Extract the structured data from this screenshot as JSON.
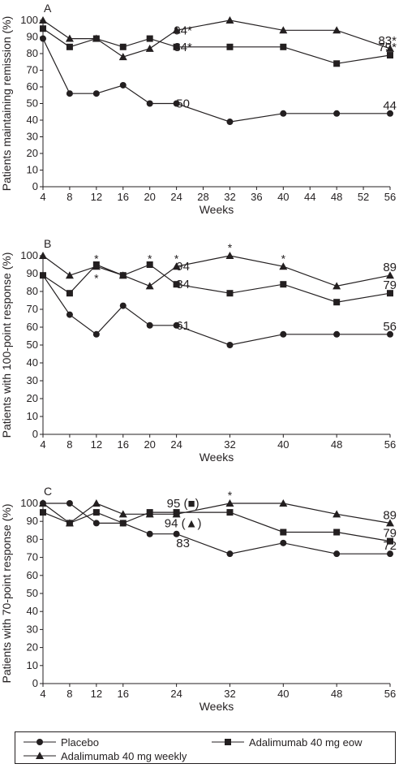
{
  "chart_data": [
    {
      "type": "line",
      "panel_label": "A",
      "xlabel": "Weeks",
      "ylabel": "Patients maintaining remission (%)",
      "x_ticks": [
        4,
        8,
        12,
        16,
        20,
        24,
        28,
        32,
        36,
        40,
        44,
        48,
        52,
        56
      ],
      "y_ticks": [
        0,
        10,
        20,
        30,
        40,
        50,
        60,
        70,
        80,
        90,
        100
      ],
      "xlim": [
        4,
        56
      ],
      "ylim": [
        0,
        100
      ],
      "series": [
        {
          "key": "placebo",
          "marker": "circle",
          "points": [
            [
              4,
              89
            ],
            [
              8,
              56
            ],
            [
              12,
              56
            ],
            [
              16,
              61
            ],
            [
              20,
              50
            ],
            [
              24,
              50
            ],
            [
              32,
              39
            ],
            [
              40,
              44
            ],
            [
              48,
              44
            ],
            [
              56,
              44
            ]
          ]
        },
        {
          "key": "eow",
          "marker": "square",
          "points": [
            [
              4,
              95
            ],
            [
              8,
              84
            ],
            [
              12,
              89
            ],
            [
              16,
              84
            ],
            [
              20,
              89
            ],
            [
              24,
              84
            ],
            [
              32,
              84
            ],
            [
              40,
              84
            ],
            [
              48,
              74
            ],
            [
              56,
              79
            ]
          ]
        },
        {
          "key": "weekly",
          "marker": "triangle",
          "points": [
            [
              4,
              100
            ],
            [
              8,
              89
            ],
            [
              12,
              89
            ],
            [
              16,
              78
            ],
            [
              20,
              83
            ],
            [
              24,
              94
            ],
            [
              32,
              100
            ],
            [
              40,
              94
            ],
            [
              48,
              94
            ],
            [
              56,
              83
            ]
          ]
        }
      ],
      "annotations": [
        {
          "text": "94*",
          "x": 24,
          "y": 94
        },
        {
          "text": "84*",
          "x": 24,
          "y": 84
        },
        {
          "text": "50",
          "x": 24,
          "y": 50
        },
        {
          "text": "83*",
          "x": 56,
          "y": 83
        },
        {
          "text": "79*",
          "x": 56,
          "y": 79
        },
        {
          "text": "44",
          "x": 56,
          "y": 44
        }
      ]
    },
    {
      "type": "line",
      "panel_label": "B",
      "xlabel": "Weeks",
      "ylabel": "Patients with 100-point response (%)",
      "x_ticks": [
        4,
        8,
        12,
        16,
        20,
        24,
        32,
        40,
        48,
        56
      ],
      "y_ticks": [
        0,
        10,
        20,
        30,
        40,
        50,
        60,
        70,
        80,
        90,
        100
      ],
      "xlim": [
        4,
        56
      ],
      "ylim": [
        0,
        100
      ],
      "series": [
        {
          "key": "placebo",
          "marker": "circle",
          "points": [
            [
              4,
              89
            ],
            [
              8,
              67
            ],
            [
              12,
              56
            ],
            [
              16,
              72
            ],
            [
              20,
              61
            ],
            [
              24,
              61
            ],
            [
              32,
              50
            ],
            [
              40,
              56
            ],
            [
              48,
              56
            ],
            [
              56,
              56
            ]
          ]
        },
        {
          "key": "eow",
          "marker": "square",
          "points": [
            [
              4,
              89
            ],
            [
              8,
              79
            ],
            [
              12,
              95
            ],
            [
              16,
              89
            ],
            [
              20,
              95
            ],
            [
              24,
              84
            ],
            [
              32,
              79
            ],
            [
              40,
              84
            ],
            [
              48,
              74
            ],
            [
              56,
              79
            ]
          ]
        },
        {
          "key": "weekly",
          "marker": "triangle",
          "points": [
            [
              4,
              100
            ],
            [
              8,
              89
            ],
            [
              12,
              94
            ],
            [
              16,
              89
            ],
            [
              20,
              83
            ],
            [
              24,
              94
            ],
            [
              32,
              100
            ],
            [
              40,
              94
            ],
            [
              48,
              83
            ],
            [
              56,
              89
            ]
          ]
        }
      ],
      "annotations": [
        {
          "text": "*",
          "x": 12,
          "y": 98
        },
        {
          "text": "*",
          "x": 12,
          "y": 87
        },
        {
          "text": "*",
          "x": 20,
          "y": 98
        },
        {
          "text": "*",
          "x": 24,
          "y": 98
        },
        {
          "text": "94",
          "x": 24,
          "y": 94
        },
        {
          "text": "84",
          "x": 24,
          "y": 84
        },
        {
          "text": "61",
          "x": 24,
          "y": 61
        },
        {
          "text": "*",
          "x": 32,
          "y": 104
        },
        {
          "text": "*",
          "x": 40,
          "y": 98
        },
        {
          "text": "89",
          "x": 56,
          "y": 89
        },
        {
          "text": "79",
          "x": 56,
          "y": 79
        },
        {
          "text": "56",
          "x": 56,
          "y": 56
        }
      ]
    },
    {
      "type": "line",
      "panel_label": "C",
      "xlabel": "Weeks",
      "ylabel": "Patients with 70-point response (%)",
      "x_ticks": [
        4,
        8,
        12,
        16,
        24,
        32,
        40,
        48,
        56
      ],
      "y_ticks": [
        0,
        10,
        20,
        30,
        40,
        50,
        60,
        70,
        80,
        90,
        100
      ],
      "xlim": [
        4,
        56
      ],
      "ylim": [
        0,
        100
      ],
      "series": [
        {
          "key": "placebo",
          "marker": "circle",
          "points": [
            [
              4,
              100
            ],
            [
              8,
              100
            ],
            [
              12,
              89
            ],
            [
              16,
              89
            ],
            [
              20,
              83
            ],
            [
              24,
              83
            ],
            [
              32,
              72
            ],
            [
              40,
              78
            ],
            [
              48,
              72
            ],
            [
              56,
              72
            ]
          ]
        },
        {
          "key": "eow",
          "marker": "square",
          "points": [
            [
              4,
              95
            ],
            [
              8,
              89
            ],
            [
              12,
              95
            ],
            [
              16,
              89
            ],
            [
              20,
              95
            ],
            [
              24,
              95
            ],
            [
              32,
              95
            ],
            [
              40,
              84
            ],
            [
              48,
              84
            ],
            [
              56,
              79
            ]
          ]
        },
        {
          "key": "weekly",
          "marker": "triangle",
          "points": [
            [
              4,
              100
            ],
            [
              8,
              89
            ],
            [
              12,
              100
            ],
            [
              16,
              94
            ],
            [
              20,
              94
            ],
            [
              24,
              94
            ],
            [
              32,
              100
            ],
            [
              40,
              100
            ],
            [
              48,
              94
            ],
            [
              56,
              89
            ]
          ]
        }
      ],
      "annotations": [
        {
          "text": "95 (■)",
          "x": 24,
          "y": 100
        },
        {
          "text": "*",
          "x": 32,
          "y": 104
        },
        {
          "text": "94 (▲)",
          "x": 24,
          "y": 89
        },
        {
          "text": "83",
          "x": 24,
          "y": 78
        },
        {
          "text": "89",
          "x": 56,
          "y": 89
        },
        {
          "text": "79",
          "x": 56,
          "y": 79
        },
        {
          "text": "72",
          "x": 56,
          "y": 72
        }
      ]
    }
  ],
  "legend": {
    "placebo": "Placebo",
    "eow": "Adalimumab 40 mg eow",
    "weekly": "Adalimumab 40 mg weekly"
  },
  "colors": {
    "ink": "#231f20",
    "background": "#ffffff"
  }
}
